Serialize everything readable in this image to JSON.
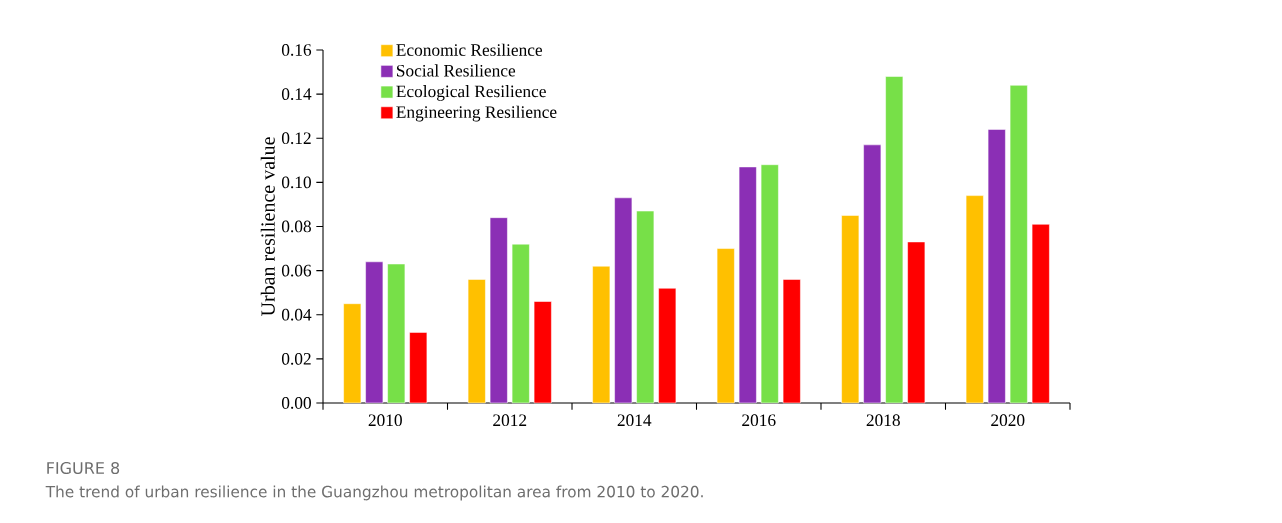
{
  "chart_data": {
    "type": "bar",
    "title": "FIGURE 8",
    "annotations": [
      "The trend of urban resilience in the Guangzhou metropolitan area from 2010 to 2020."
    ],
    "ylabel": "Urban resilience value",
    "categories": [
      "2010",
      "2012",
      "2014",
      "2016",
      "2018",
      "2020"
    ],
    "series": [
      {
        "name": "Economic  Resilience",
        "color": "#ffc000",
        "values": [
          0.045,
          0.056,
          0.062,
          0.07,
          0.085,
          0.094
        ]
      },
      {
        "name": "Social  Resilience",
        "color": "#8b2fb5",
        "values": [
          0.064,
          0.084,
          0.093,
          0.107,
          0.117,
          0.124
        ]
      },
      {
        "name": "Ecological  Resilience",
        "color": "#77e048",
        "values": [
          0.063,
          0.072,
          0.087,
          0.108,
          0.148,
          0.144
        ]
      },
      {
        "name": "Engineering  Resilience",
        "color": "#ff0000",
        "values": [
          0.032,
          0.046,
          0.052,
          0.056,
          0.073,
          0.081
        ]
      }
    ],
    "ylim": [
      0,
      0.16
    ],
    "yticks": [
      {
        "value": 0,
        "label": "0.00"
      },
      {
        "value": 0.02,
        "label": "0.02"
      },
      {
        "value": 0.04,
        "label": "0.04"
      },
      {
        "value": 0.06,
        "label": "0.06"
      },
      {
        "value": 0.08,
        "label": "0.08"
      },
      {
        "value": 0.1,
        "label": "0.10"
      },
      {
        "value": 0.12,
        "label": "0.12"
      },
      {
        "value": 0.14,
        "label": "0.14"
      },
      {
        "value": 0.16,
        "label": "0.16"
      }
    ],
    "legend": "top left"
  }
}
